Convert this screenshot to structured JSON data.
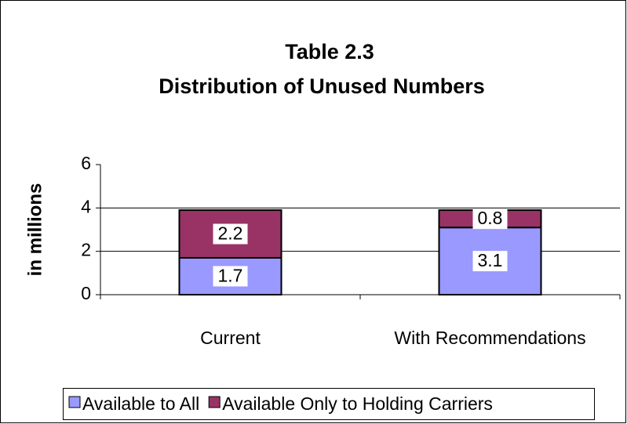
{
  "chart_data": {
    "type": "stacked_bar",
    "title": [
      "Table 2.3",
      "Distribution of Unused Numbers"
    ],
    "y_label": "in millions",
    "categories": [
      "Current",
      "With Recommendations"
    ],
    "series": [
      {
        "name": "Available to All",
        "color": "#9999ff",
        "values": [
          1.7,
          3.1
        ]
      },
      {
        "name": "Available Only to Holding Carriers",
        "color": "#993366",
        "values": [
          2.2,
          0.8
        ]
      }
    ],
    "ylim": [
      0,
      6
    ],
    "yticks": [
      0,
      2,
      4,
      6
    ],
    "grid": true,
    "legend": "bottom"
  }
}
